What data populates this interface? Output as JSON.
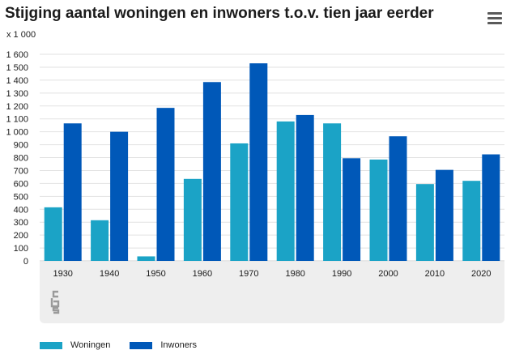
{
  "header": {
    "title": "Stijging aantal woningen en inwoners t.o.v. tien jaar eerder"
  },
  "menu_icon": "hamburger-menu-icon",
  "logo_icon": "cbs-logo",
  "colors": {
    "woningen": "#1ba3c6",
    "inwoners": "#0058b8",
    "grid": "#e2e2e2",
    "band": "#eeeeee"
  },
  "chart_data": {
    "type": "bar",
    "title": "Stijging aantal woningen en inwoners t.o.v. tien jaar eerder",
    "unit_label": "x 1 000",
    "categories": [
      "1930",
      "1940",
      "1950",
      "1960",
      "1970",
      "1980",
      "1990",
      "2000",
      "2010",
      "2020"
    ],
    "series": [
      {
        "name": "Woningen",
        "values": [
          415,
          315,
          35,
          635,
          910,
          1080,
          1065,
          785,
          595,
          620
        ]
      },
      {
        "name": "Inwoners",
        "values": [
          1065,
          1000,
          1185,
          1385,
          1530,
          1130,
          795,
          965,
          705,
          825
        ]
      }
    ],
    "y_ticks": [
      "0",
      "100",
      "200",
      "300",
      "400",
      "500",
      "600",
      "700",
      "800",
      "900",
      "1 000",
      "1 100",
      "1 200",
      "1 300",
      "1 400",
      "1 500",
      "1 600"
    ],
    "ylim": [
      0,
      1600
    ],
    "grid": true,
    "legend_position": "bottom-left"
  }
}
